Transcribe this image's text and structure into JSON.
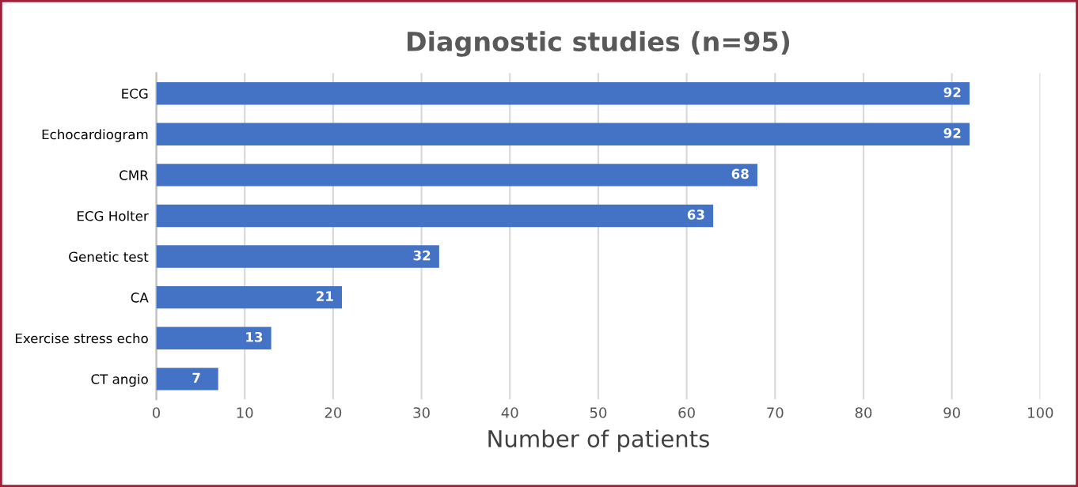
{
  "chart_data": {
    "type": "bar",
    "orientation": "horizontal",
    "title": "Diagnostic studies (n=95)",
    "xlabel": "Number of patients",
    "categories": [
      "ECG",
      "Echocardiogram",
      "CMR",
      "ECG Holter",
      "Genetic test",
      "CA",
      "Exercise stress echo",
      "CT angio"
    ],
    "values": [
      92,
      92,
      68,
      63,
      32,
      21,
      13,
      7
    ],
    "color": "#4472c4",
    "xlim": [
      0,
      100
    ],
    "xticks": [
      0,
      10,
      20,
      30,
      40,
      50,
      60,
      70,
      80,
      90,
      100
    ],
    "grid": "x",
    "data_labels": true
  }
}
